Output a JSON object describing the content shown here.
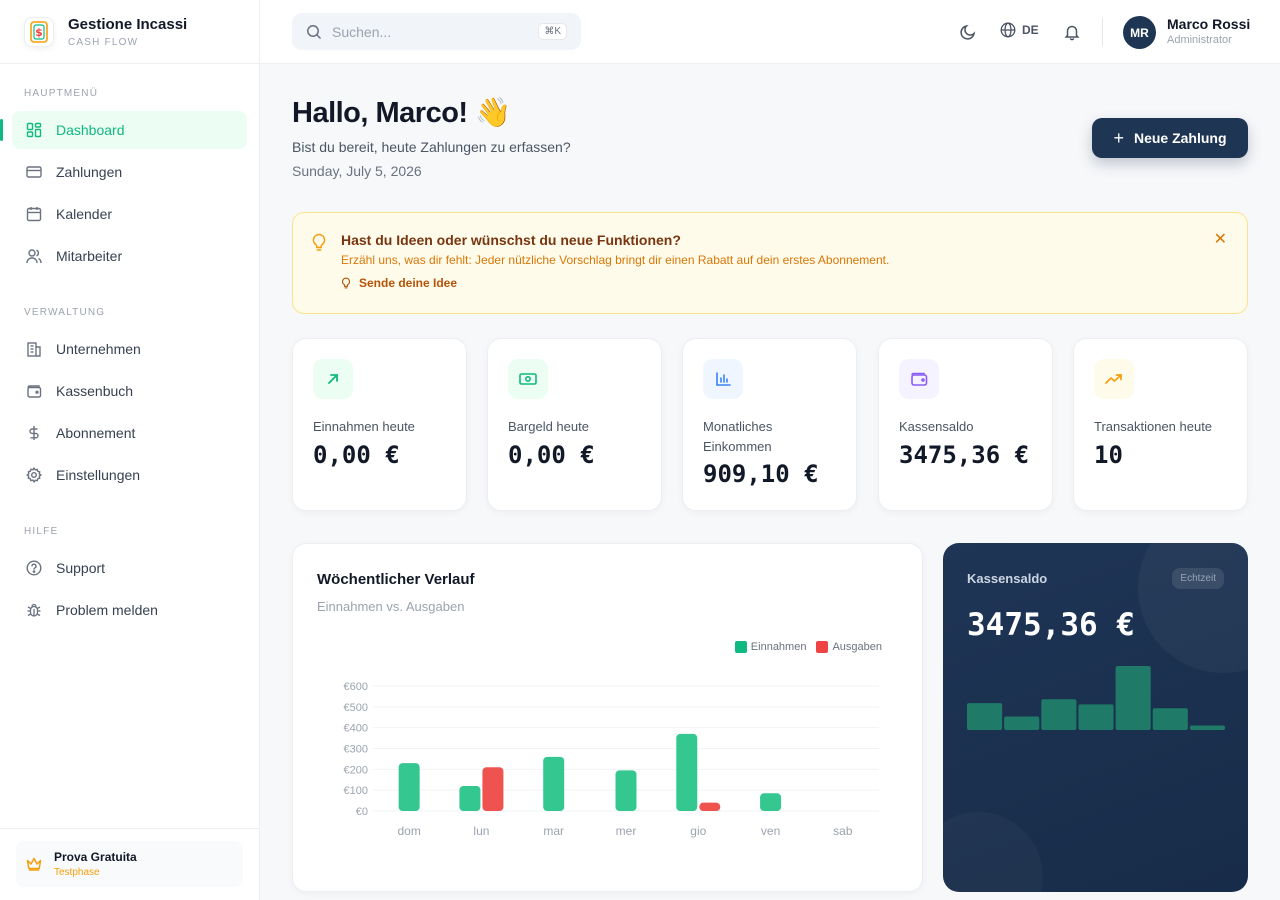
{
  "brand": {
    "title": "Gestione Incassi",
    "subtitle": "CASH FLOW"
  },
  "sidebar": {
    "sections": [
      {
        "heading": "HAUPTMENÜ",
        "items": [
          {
            "label": "Dashboard",
            "icon": "grid-icon",
            "active": true
          },
          {
            "label": "Zahlungen",
            "icon": "credit-card-icon"
          },
          {
            "label": "Kalender",
            "icon": "calendar-icon"
          },
          {
            "label": "Mitarbeiter",
            "icon": "users-icon"
          }
        ]
      },
      {
        "heading": "VERWALTUNG",
        "items": [
          {
            "label": "Unternehmen",
            "icon": "building-icon"
          },
          {
            "label": "Kassenbuch",
            "icon": "wallet-icon"
          },
          {
            "label": "Abonnement",
            "icon": "dollar-icon"
          },
          {
            "label": "Einstellungen",
            "icon": "gear-icon"
          }
        ]
      },
      {
        "heading": "HILFE",
        "items": [
          {
            "label": "Support",
            "icon": "help-circle-icon"
          },
          {
            "label": "Problem melden",
            "icon": "bug-icon"
          }
        ]
      }
    ],
    "trial": {
      "title": "Prova Gratuita",
      "subtitle": "Testphase"
    }
  },
  "topbar": {
    "search": {
      "placeholder": "Suchen...",
      "shortcut": "⌘K"
    },
    "language": "DE",
    "user": {
      "initials": "MR",
      "name": "Marco Rossi",
      "role": "Administrator"
    }
  },
  "greeting": {
    "title": "Hallo, Marco! 👋",
    "subtitle": "Bist du bereit, heute Zahlungen zu erfassen?",
    "date": "Sunday, July 5, 2026"
  },
  "new_payment_button": {
    "label": "Neue Zahlung"
  },
  "banner": {
    "title": "Hast du Ideen oder wünschst du neue Funktionen?",
    "text": "Erzähl uns, was dir fehlt: Jeder nützliche Vorschlag bringt dir einen Rabatt auf dein erstes Abonnement.",
    "link": "Sende deine Idee"
  },
  "stats": [
    {
      "label": "Einnahmen heute",
      "value": "0,00 €",
      "icon": "arrow-up-right-icon",
      "color": "#10b981",
      "bg": "#ecfdf3"
    },
    {
      "label": "Bargeld heute",
      "value": "0,00 €",
      "icon": "banknote-icon",
      "color": "#10b981",
      "bg": "#ecfdf3"
    },
    {
      "label": "Monatliches Einkommen",
      "value": "909,10 €",
      "icon": "bar-chart-icon",
      "color": "#3b82f6",
      "bg": "#eff6ff"
    },
    {
      "label": "Kassensaldo",
      "value": "3475,36 €",
      "icon": "wallet-icon",
      "color": "#8b5cf6",
      "bg": "#f5f3ff"
    },
    {
      "label": "Transaktionen heute",
      "value": "10",
      "icon": "trending-up-icon",
      "color": "#f59e0b",
      "bg": "#fffbeb"
    }
  ],
  "weekly": {
    "title": "Wöchentlicher Verlauf",
    "subtitle": "Einnahmen vs. Ausgaben",
    "colors": {
      "income": "#34c78f",
      "expense": "#ef5350"
    }
  },
  "chart_data": {
    "type": "bar",
    "categories": [
      "dom",
      "lun",
      "mar",
      "mer",
      "gio",
      "ven",
      "sab"
    ],
    "series": [
      {
        "name": "Einnahmen",
        "values": [
          230,
          120,
          260,
          195,
          370,
          85,
          0
        ]
      },
      {
        "name": "Ausgaben",
        "values": [
          0,
          210,
          0,
          0,
          40,
          0,
          0
        ]
      }
    ],
    "ylim": [
      0,
      600
    ],
    "yticks": [
      "€0",
      "€100",
      "€200",
      "€300",
      "€400",
      "€500",
      "€600"
    ],
    "legend": "top-right",
    "grid": true
  },
  "balance": {
    "label": "Kassensaldo",
    "badge": "Echtzeit",
    "value": "3475,36 €",
    "mini_bars": [
      0.42,
      0.21,
      0.48,
      0.4,
      1.0,
      0.34,
      0.07
    ]
  }
}
